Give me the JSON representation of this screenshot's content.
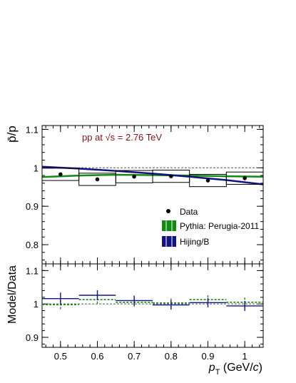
{
  "colors": {
    "frame": "#000000",
    "data": "#000000",
    "pythia": "#138a13",
    "hijing": "#141480",
    "annotation": "#7a1515",
    "reference_line": "#555555"
  },
  "chart_data": [
    {
      "type": "scatter",
      "panel": "upper",
      "title": "",
      "annotation": "pp at √s = 2.76 TeV",
      "ylabel": "p̄/p",
      "xlim": [
        0.45,
        1.05
      ],
      "ylim": [
        0.75,
        1.11
      ],
      "y_ticks": [
        "0.8",
        "0.9",
        "1",
        "1.1"
      ],
      "reference_line_y": 1.0,
      "legend_position": "middle-right",
      "legend": [
        {
          "label": "Data",
          "marker": "filled-circle"
        },
        {
          "label": "Pythia: Perugia-2011",
          "marker": "green-band"
        },
        {
          "label": "Hijing/B",
          "marker": "blue-band"
        }
      ],
      "series": [
        {
          "name": "Data",
          "x": [
            0.5,
            0.6,
            0.7,
            0.8,
            0.9,
            1.0
          ],
          "y": [
            0.983,
            0.97,
            0.977,
            0.978,
            0.967,
            0.973
          ],
          "stat_err": [
            0.003,
            0.003,
            0.003,
            0.004,
            0.005,
            0.006
          ],
          "syst_err": [
            0.016,
            0.016,
            0.016,
            0.016,
            0.016,
            0.016
          ],
          "syst_box_halfwidth": 0.05
        },
        {
          "name": "Pythia: Perugia-2011",
          "x": [
            0.45,
            0.55,
            0.65,
            0.75,
            0.85,
            0.95,
            1.05
          ],
          "y": [
            0.976,
            0.98,
            0.982,
            0.981,
            0.98,
            0.978,
            0.977
          ]
        },
        {
          "name": "Hijing/B",
          "x": [
            0.45,
            0.55,
            0.65,
            0.75,
            0.85,
            0.95,
            1.05
          ],
          "y": [
            1.003,
            0.998,
            0.992,
            0.985,
            0.977,
            0.968,
            0.957
          ]
        }
      ]
    },
    {
      "type": "scatter",
      "panel": "lower",
      "title": "",
      "ylabel": "Model/Data",
      "xlabel": "p_T (GeV/c)",
      "xlabel_parts": {
        "var": "p",
        "sub": "T",
        "unit_open": " (GeV/",
        "unit_c": "c",
        "unit_close": ")"
      },
      "xlim": [
        0.45,
        1.05
      ],
      "ylim": [
        0.87,
        1.12
      ],
      "x_ticks": [
        "0.5",
        "0.6",
        "0.7",
        "0.8",
        "0.9",
        "1"
      ],
      "y_ticks": [
        "0.9",
        "1",
        "1.1"
      ],
      "reference_line_y": 1.0,
      "series": [
        {
          "name": "Pythia: Perugia-2011",
          "x": [
            0.5,
            0.6,
            0.7,
            0.8,
            0.9,
            1.0
          ],
          "y": [
            0.998,
            1.013,
            1.005,
            1.003,
            1.013,
            1.005
          ],
          "err": [
            0.014,
            0.016,
            0.013,
            0.013,
            0.013,
            0.014
          ]
        },
        {
          "name": "Hijing/B",
          "x": [
            0.5,
            0.6,
            0.7,
            0.8,
            0.9,
            1.0
          ],
          "y": [
            1.016,
            1.026,
            1.01,
            0.997,
            1.004,
            0.994
          ],
          "err": [
            0.018,
            0.015,
            0.015,
            0.014,
            0.014,
            0.015
          ]
        }
      ]
    }
  ]
}
